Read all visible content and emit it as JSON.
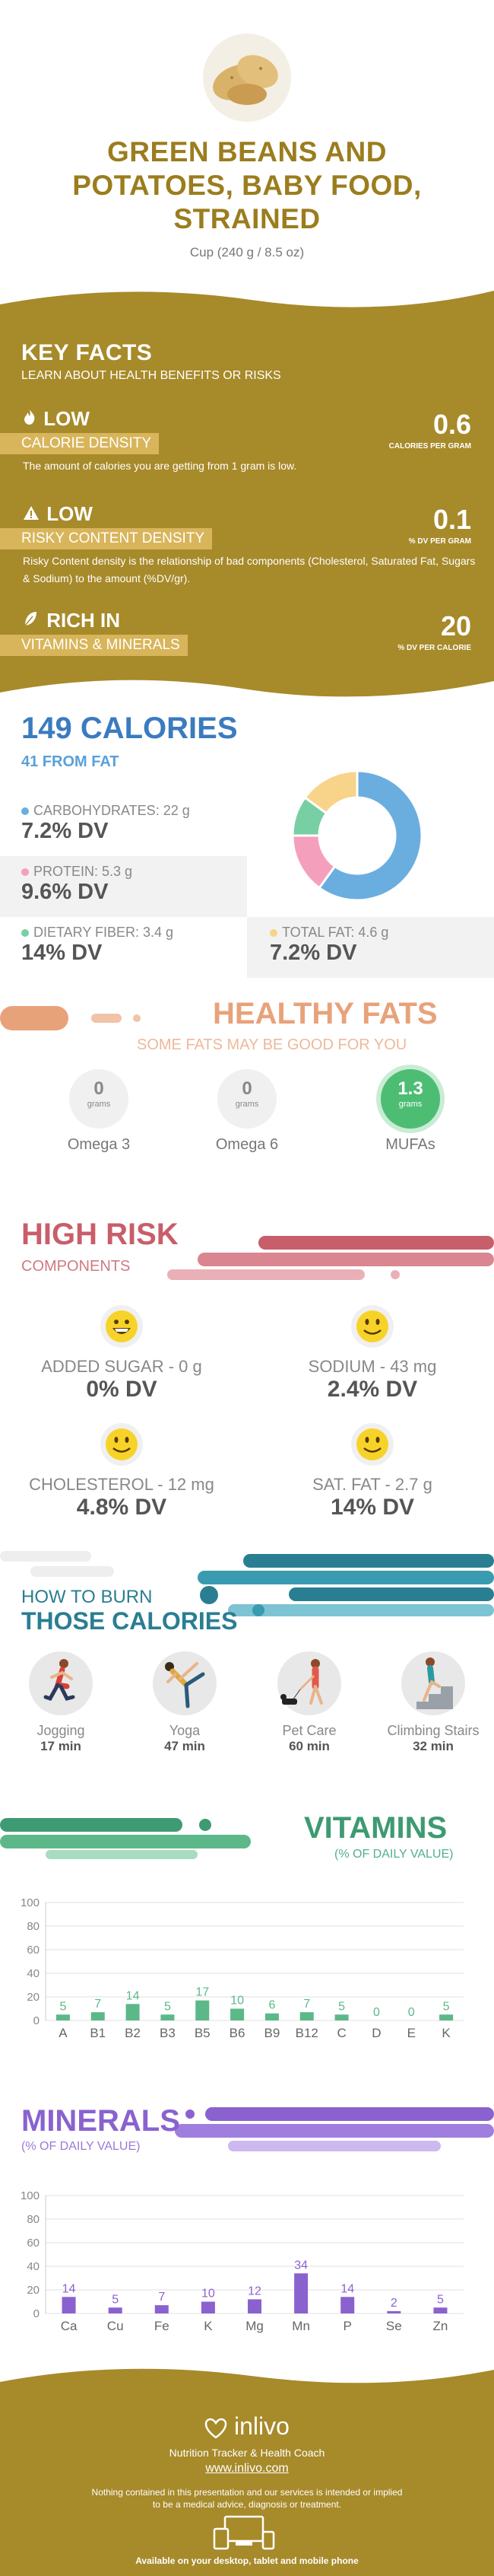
{
  "header": {
    "food_icon": "potato-icon",
    "title": "GREEN BEANS AND POTATOES, BABY FOOD, STRAINED",
    "serving": "Cup (240 g / 8.5 oz)"
  },
  "key_facts": {
    "title": "KEY FACTS",
    "subtitle": "LEARN ABOUT HEALTH BENEFITS OR RISKS",
    "band_color": "#a78a2a",
    "items": [
      {
        "icon": "flame-icon",
        "level": "LOW",
        "label": "CALORIE DENSITY",
        "value": "0.6",
        "unit": "CALORIES PER GRAM",
        "desc": "The amount of calories you are getting from 1 gram is low."
      },
      {
        "icon": "warning-icon",
        "level": "LOW",
        "label": "RISKY CONTENT DENSITY",
        "value": "0.1",
        "unit": "% DV PER GRAM",
        "desc": "Risky Content density is the relationship of bad components (Cholesterol, Saturated Fat, Sugars & Sodium) to the amount (%DV/gr)."
      },
      {
        "icon": "leaf-icon",
        "level": "RICH  IN",
        "label": "VITAMINS & MINERALS",
        "value": "20",
        "unit": "% DV PER CALORIE",
        "desc": ""
      }
    ]
  },
  "calories": {
    "title": "149 CALORIES",
    "from_fat": "41 FROM FAT",
    "carbs_label": "CARBOHYDRATES: 22 g",
    "carbs_dv": "7.2% DV",
    "protein_label": "PROTEIN: 5.3 g",
    "protein_dv": "9.6% DV",
    "fiber_label": "DIETARY FIBER: 3.4 g",
    "fiber_dv": "14% DV",
    "fat_label": "TOTAL FAT: 4.6 g",
    "fat_dv": "7.2% DV",
    "donut": [
      {
        "name": "carbohydrates",
        "fraction": 0.6,
        "color": "#6aaee0"
      },
      {
        "name": "protein",
        "fraction": 0.15,
        "color": "#f4a0bd"
      },
      {
        "name": "fiber",
        "fraction": 0.1,
        "color": "#78cfa4"
      },
      {
        "name": "fat",
        "fraction": 0.15,
        "color": "#f7d489"
      }
    ]
  },
  "healthy_fats": {
    "title": "HEALTHY FATS",
    "subtitle": "SOME FATS MAY BE GOOD FOR YOU",
    "items": [
      {
        "value": "0",
        "unit": "grams",
        "name": "Omega 3"
      },
      {
        "value": "0",
        "unit": "grams",
        "name": "Omega 6"
      },
      {
        "value": "1.3",
        "unit": "grams",
        "name": "MUFAs"
      }
    ]
  },
  "high_risk": {
    "title": "HIGH RISK",
    "subtitle": "COMPONENTS",
    "items": [
      {
        "icon": "grin-face-icon",
        "label": "ADDED SUGAR - 0 g",
        "dv": "0% DV"
      },
      {
        "icon": "smile-face-icon",
        "label": "SODIUM - 43 mg",
        "dv": "2.4% DV"
      },
      {
        "icon": "smile-face-icon",
        "label": "CHOLESTEROL - 12 mg",
        "dv": "4.8% DV"
      },
      {
        "icon": "smile-face-icon",
        "label": "SAT. FAT - 2.7 g",
        "dv": "14% DV"
      }
    ]
  },
  "burn": {
    "title_line1": "HOW TO BURN",
    "title_line2": "THOSE CALORIES",
    "activities": [
      {
        "icon": "jogging-icon",
        "name": "Jogging",
        "minutes": "17 min"
      },
      {
        "icon": "yoga-icon",
        "name": "Yoga",
        "minutes": "47 min"
      },
      {
        "icon": "pet-care-icon",
        "name": "Pet Care",
        "minutes": "60 min"
      },
      {
        "icon": "climbing-stairs-icon",
        "name": "Climbing Stairs",
        "minutes": "32 min"
      }
    ]
  },
  "vitamins": {
    "title": "VITAMINS",
    "subtitle": "(% OF DAILY VALUE)",
    "chart_data": {
      "type": "bar",
      "categories": [
        "A",
        "B1",
        "B2",
        "B3",
        "B5",
        "B6",
        "B9",
        "B12",
        "C",
        "D",
        "E",
        "K"
      ],
      "values": [
        5,
        7,
        14,
        5,
        17,
        10,
        6,
        7,
        5,
        0,
        0,
        5
      ],
      "yticks": [
        0,
        20,
        40,
        60,
        80,
        100
      ],
      "ylim": [
        0,
        100
      ],
      "color": "#5cb889",
      "grid": true
    }
  },
  "minerals": {
    "title": "MINERALS",
    "subtitle": "(% OF DAILY VALUE)",
    "chart_data": {
      "type": "bar",
      "categories": [
        "Ca",
        "Cu",
        "Fe",
        "K",
        "Mg",
        "Mn",
        "P",
        "Se",
        "Zn"
      ],
      "values": [
        14,
        5,
        7,
        10,
        12,
        34,
        14,
        2,
        5
      ],
      "yticks": [
        0,
        20,
        40,
        60,
        80,
        100
      ],
      "ylim": [
        0,
        100
      ],
      "color": "#8a62cf",
      "grid": true
    }
  },
  "footer": {
    "brand": "inlivo",
    "tagline": "Nutrition Tracker & Health Coach",
    "url": "www.inlivo.com",
    "disclaimer_1": "Nothing contained in this presentation and our services is intended or implied",
    "disclaimer_2": "to be a medical advice, diagnosis or treatment.",
    "devices": "Available on your desktop, tablet and mobile phone"
  }
}
